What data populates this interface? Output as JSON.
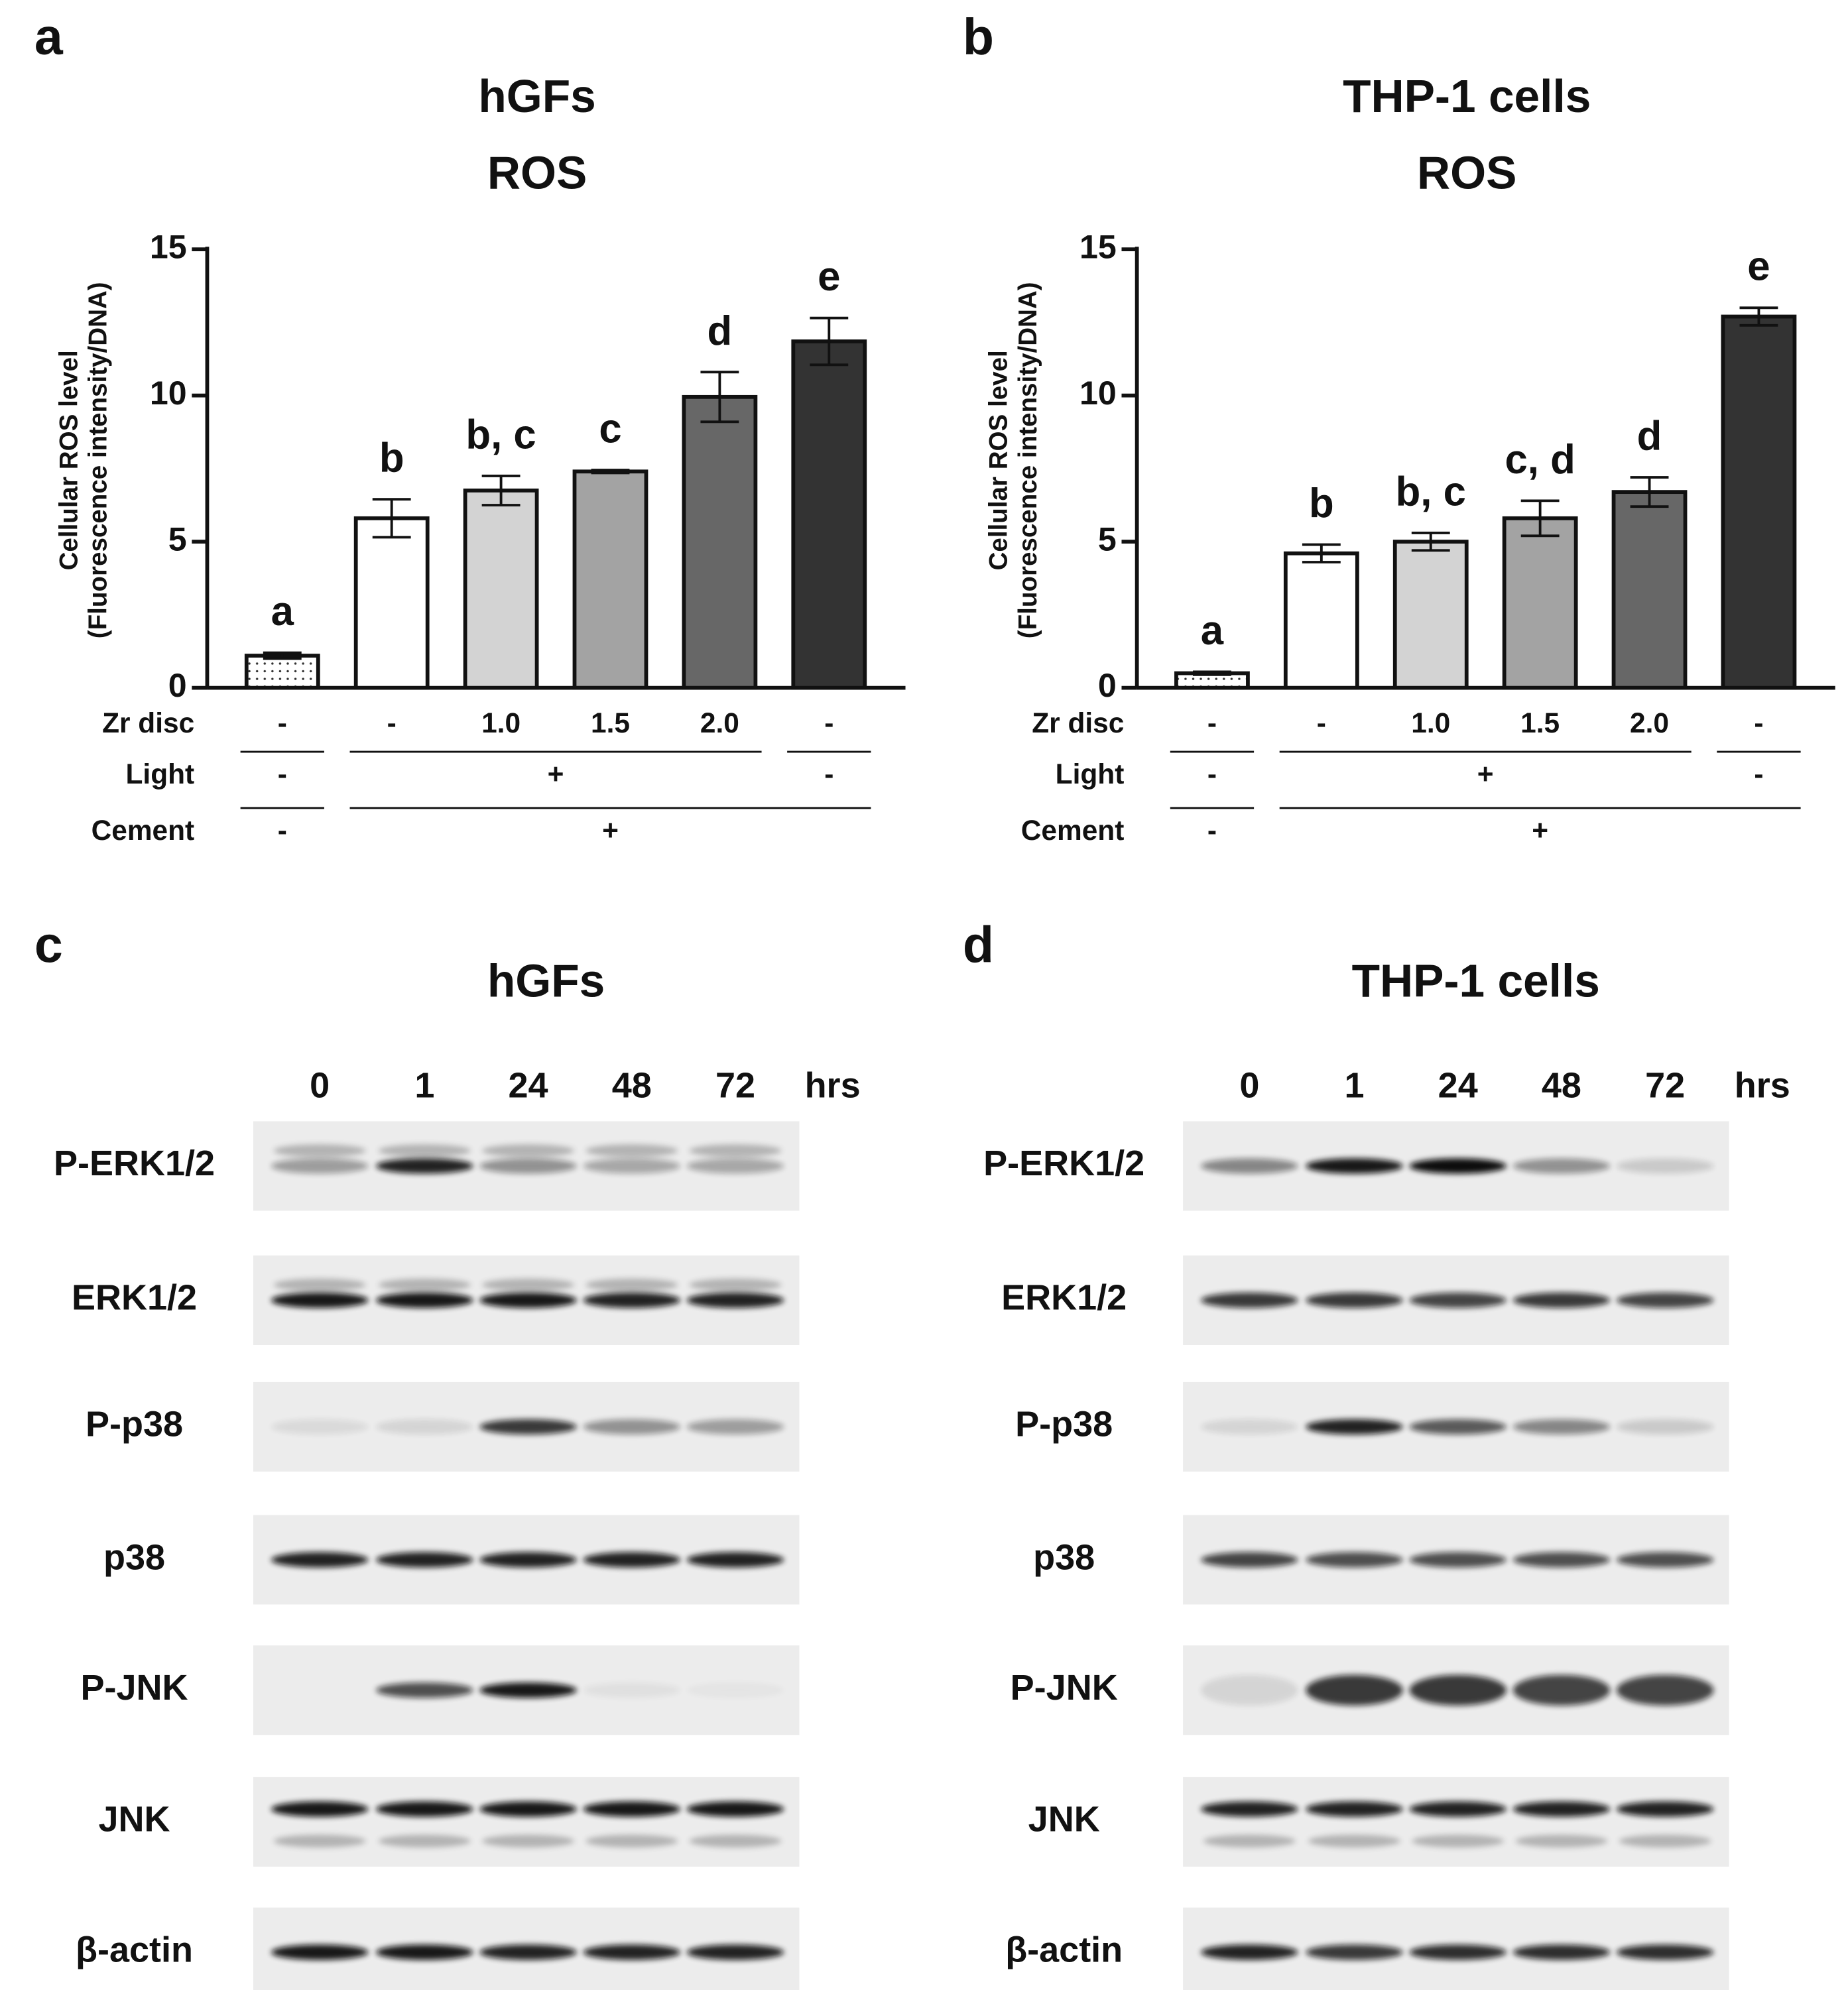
{
  "chart_data": [
    {
      "type": "bar",
      "panel": "a",
      "title": [
        "hGFs",
        "ROS"
      ],
      "ylabel": [
        "Cellular ROS level",
        "(Fluorescence intensity/DNA)"
      ],
      "values": [
        1.1,
        5.8,
        6.75,
        7.4,
        9.95,
        11.85
      ],
      "errors": [
        0.1,
        0.65,
        0.5,
        0.05,
        0.85,
        0.8
      ],
      "annotations": [
        "a",
        "b",
        "b, c",
        "c",
        "d",
        "e"
      ],
      "colors": [
        "#ffffff",
        "#ffffff",
        "#d3d3d3",
        "#a3a3a3",
        "#676767",
        "#333333"
      ],
      "patterns": [
        "dotted",
        null,
        null,
        null,
        null,
        null
      ],
      "ylim": [
        0,
        15
      ],
      "yticks": [
        0,
        5,
        10,
        15
      ],
      "conditions": [
        {
          "label": "Zr disc",
          "values": [
            "-",
            "-",
            "1.0",
            "1.5",
            "2.0",
            "-"
          ]
        },
        {
          "label": "Light",
          "values": [
            "-",
            "+",
            null,
            null,
            null,
            "-"
          ]
        },
        {
          "label": "Cement",
          "values": [
            "-",
            "+",
            null,
            null,
            null,
            null
          ]
        }
      ]
    },
    {
      "type": "bar",
      "panel": "b",
      "title": [
        "THP-1 cells",
        "ROS"
      ],
      "ylabel": [
        "Cellular ROS level",
        "(Fluorescence intensity/DNA)"
      ],
      "values": [
        0.5,
        4.6,
        5.0,
        5.8,
        6.7,
        12.7
      ],
      "errors": [
        0.05,
        0.3,
        0.3,
        0.6,
        0.5,
        0.3
      ],
      "annotations": [
        "a",
        "b",
        "b, c",
        "c, d",
        "d",
        "e"
      ],
      "colors": [
        "#ffffff",
        "#ffffff",
        "#d3d3d3",
        "#a3a3a3",
        "#676767",
        "#333333"
      ],
      "patterns": [
        "dotted",
        null,
        null,
        null,
        null,
        null
      ],
      "ylim": [
        0,
        15
      ],
      "yticks": [
        0,
        5,
        10,
        15
      ],
      "conditions": [
        {
          "label": "Zr disc",
          "values": [
            "-",
            "-",
            "1.0",
            "1.5",
            "2.0",
            "-"
          ]
        },
        {
          "label": "Light",
          "values": [
            "-",
            "+",
            null,
            null,
            null,
            "-"
          ]
        },
        {
          "label": "Cement",
          "values": [
            "-",
            "+",
            null,
            null,
            null,
            null
          ]
        }
      ]
    }
  ],
  "blots": [
    {
      "panel": "c",
      "title": "hGFs",
      "lanes": [
        "0",
        "1",
        "24",
        "48",
        "72"
      ],
      "unit": "hrs",
      "proteins": [
        "P-ERK1/2",
        "ERK1/2",
        "P-p38",
        "p38",
        "P-JNK",
        "JNK",
        "β-actin"
      ]
    },
    {
      "panel": "d",
      "title": "THP-1 cells",
      "lanes": [
        "0",
        "1",
        "24",
        "48",
        "72"
      ],
      "unit": "hrs",
      "proteins": [
        "P-ERK1/2",
        "ERK1/2",
        "P-p38",
        "p38",
        "P-JNK",
        "JNK",
        "β-actin"
      ]
    }
  ]
}
